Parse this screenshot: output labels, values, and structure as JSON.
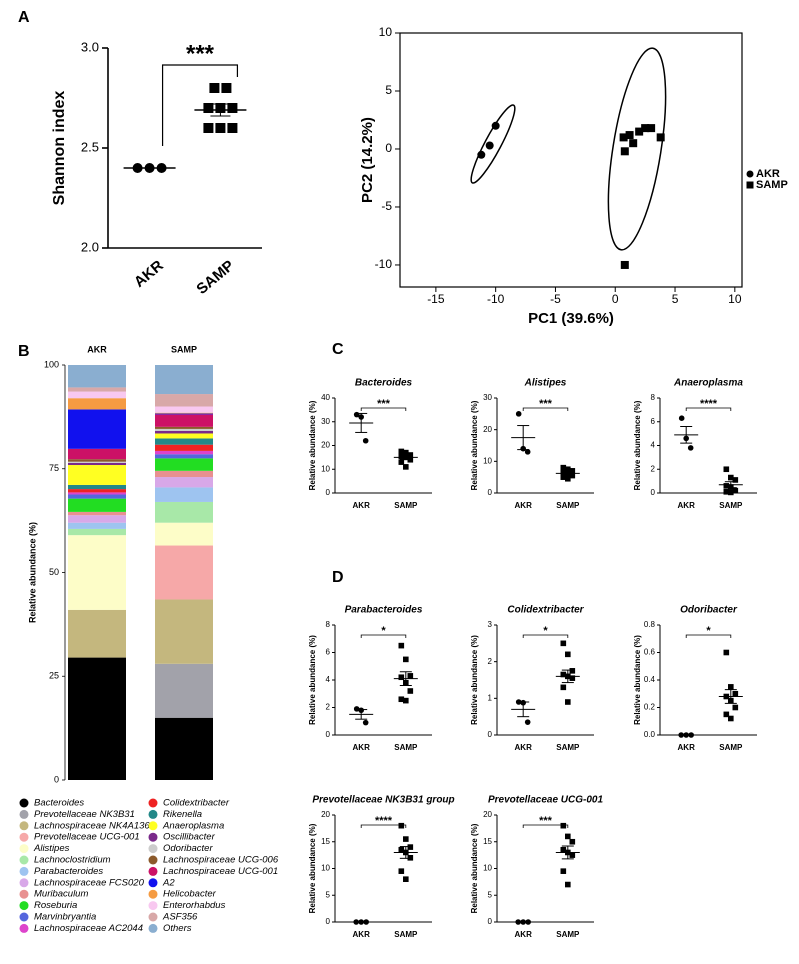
{
  "panel_labels": [
    "A",
    "B",
    "C",
    "D"
  ],
  "chart_data": [
    {
      "type": "dot",
      "y_label": "Shannon index",
      "categories": [
        "AKR",
        "SAMP"
      ],
      "markers": [
        "circle",
        "square"
      ],
      "points": [
        [
          2.4,
          2.4,
          2.4
        ],
        [
          2.8,
          2.8,
          2.7,
          2.7,
          2.7,
          2.6,
          2.6,
          2.6
        ]
      ],
      "means": [
        2.4,
        2.69
      ],
      "sems": [
        0,
        0.03
      ],
      "ylim": [
        2,
        3
      ],
      "yticks": [
        {
          "value": 2,
          "label": "2.0"
        },
        2.5,
        {
          "value": 3,
          "label": "3.0"
        }
      ],
      "significance": "***"
    },
    {
      "type": "scatter",
      "x_label": "PC1 (39.6%)",
      "y_label": "PC2 (14.2%)",
      "xlim": [
        -18,
        10.6
      ],
      "ylim": [
        -11.9,
        10
      ],
      "xticks": [
        -15,
        -10,
        -5,
        0,
        5,
        10
      ],
      "yticks": [
        -10,
        -5,
        0,
        5,
        10
      ],
      "legend": "right",
      "series": [
        {
          "name": "AKR",
          "marker": "circle",
          "x": [
            -11.2,
            -10.5,
            -10
          ],
          "y": [
            -0.5,
            0.3,
            2
          ]
        },
        {
          "name": "SAMP",
          "marker": "square",
          "x": [
            0.7,
            1.2,
            1.5,
            2,
            2.5,
            3,
            3.8,
            0.8,
            0.8
          ],
          "y": [
            1,
            1.2,
            0.5,
            1.5,
            1.8,
            1.8,
            1,
            -0.2,
            -10
          ]
        }
      ]
    },
    {
      "type": "stacked_bar",
      "y_label": "Relative abundance (%)",
      "categories": [
        "AKR",
        "SAMP"
      ],
      "ylim": [
        0,
        100
      ],
      "yticks": [
        0,
        25,
        50,
        75,
        100
      ],
      "series": [
        {
          "name": "Bacteroides",
          "color": "#000000",
          "values": [
            29.5,
            15
          ]
        },
        {
          "name": "Prevotellaceae NK3B31",
          "color": "#a2a2aa",
          "values": [
            0,
            13
          ]
        },
        {
          "name": "Lachnospiraceae NK4A136",
          "color": "#c4b77e",
          "values": [
            11.5,
            15.5
          ]
        },
        {
          "name": "Prevotellaceae UCG-001",
          "color": "#f6a8a8",
          "values": [
            0,
            13
          ]
        },
        {
          "name": "Alistipes",
          "color": "#fdfdc8",
          "values": [
            18,
            5.5
          ]
        },
        {
          "name": "Lachnoclostridium",
          "color": "#a8e8a8",
          "values": [
            1.5,
            5
          ]
        },
        {
          "name": "Parabacteroides",
          "color": "#9ec4f0",
          "values": [
            1.5,
            3.5
          ]
        },
        {
          "name": "Lachnospiraceae FCS020",
          "color": "#d8a8e8",
          "values": [
            1.8,
            2.5
          ]
        },
        {
          "name": "Muribaculum",
          "color": "#e89090",
          "values": [
            0.8,
            1.5
          ]
        },
        {
          "name": "Roseburia",
          "color": "#22dd22",
          "values": [
            3.2,
            3
          ]
        },
        {
          "name": "Marvinbryantia",
          "color": "#5566dd",
          "values": [
            1,
            1
          ]
        },
        {
          "name": "Lachnospiraceae AC2044",
          "color": "#dd44cc",
          "values": [
            0.5,
            0.8
          ]
        },
        {
          "name": "Colidextribacter",
          "color": "#ee2222",
          "values": [
            0.8,
            1.5
          ]
        },
        {
          "name": "Rikenella",
          "color": "#228888",
          "values": [
            1,
            1.5
          ]
        },
        {
          "name": "Anaeroplasma",
          "color": "#ffff22",
          "values": [
            4.8,
            1.2
          ]
        },
        {
          "name": "Oscillibacter",
          "color": "#7a2a8a",
          "values": [
            0.5,
            0.6
          ]
        },
        {
          "name": "Odoribacter",
          "color": "#cccccc",
          "values": [
            0.3,
            0.5
          ]
        },
        {
          "name": "Lachnospiraceae UCG-006",
          "color": "#8b5a2b",
          "values": [
            0.6,
            0.5
          ]
        },
        {
          "name": "Lachnospiraceae UCG-001",
          "color": "#cc1166",
          "values": [
            2.5,
            3
          ]
        },
        {
          "name": "A2",
          "color": "#1111ee",
          "values": [
            9.5,
            0.2
          ]
        },
        {
          "name": "Helicobacter",
          "color": "#f59b42",
          "values": [
            2.7,
            0.2
          ]
        },
        {
          "name": "Enterorhabdus",
          "color": "#f8c8f0",
          "values": [
            1.6,
            1.5
          ]
        },
        {
          "name": "ASF356",
          "color": "#d8a8a8",
          "values": [
            1,
            3
          ]
        },
        {
          "name": "Others",
          "color": "#8aaed0",
          "values": [
            5.4,
            7
          ]
        }
      ]
    },
    {
      "type": "dot",
      "title": "Bacteroides",
      "y_label": "Relative abundance (%)",
      "categories": [
        "AKR",
        "SAMP"
      ],
      "markers": [
        "circle",
        "square"
      ],
      "points": [
        [
          33,
          32,
          22
        ],
        [
          17.5,
          17,
          16,
          15.5,
          15,
          14,
          13,
          11
        ]
      ],
      "means": [
        29.5,
        15
      ],
      "sems": [
        4,
        0.8
      ],
      "ylim": [
        0,
        40
      ],
      "yticks": [
        0,
        10,
        20,
        30,
        40
      ],
      "significance": "***"
    },
    {
      "type": "dot",
      "title": "Alistipes",
      "y_label": "Relative abundance (%)",
      "categories": [
        "AKR",
        "SAMP"
      ],
      "markers": [
        "circle",
        "square"
      ],
      "points": [
        [
          25,
          14,
          13
        ],
        [
          8,
          7.5,
          7,
          6.5,
          6,
          5.5,
          5,
          4.5
        ]
      ],
      "means": [
        17.5,
        6.2
      ],
      "sems": [
        3.8,
        0.5
      ],
      "ylim": [
        0,
        30
      ],
      "yticks": [
        0,
        10,
        20,
        30
      ],
      "significance": "***"
    },
    {
      "type": "dot",
      "title": "Anaeroplasma",
      "y_label": "Relative abundance (%)",
      "categories": [
        "AKR",
        "SAMP"
      ],
      "markers": [
        "circle",
        "square"
      ],
      "points": [
        [
          6.3,
          4.6,
          3.8
        ],
        [
          2,
          1.3,
          1.1,
          0.6,
          0.5,
          0.2,
          0.1,
          0.05
        ]
      ],
      "means": [
        4.9,
        0.7
      ],
      "sems": [
        0.7,
        0.25
      ],
      "ylim": [
        0,
        8
      ],
      "yticks": [
        0,
        2,
        4,
        6,
        8
      ],
      "significance": "****"
    },
    {
      "type": "dot",
      "title": "Parabacteroides",
      "y_label": "Relative abundance (%)",
      "categories": [
        "AKR",
        "SAMP"
      ],
      "markers": [
        "circle",
        "square"
      ],
      "points": [
        [
          1.9,
          1.8,
          0.9
        ],
        [
          6.5,
          5.5,
          4.3,
          4.2,
          3.8,
          3.2,
          2.6,
          2.5
        ]
      ],
      "means": [
        1.5,
        4.1
      ],
      "sems": [
        0.35,
        0.5
      ],
      "ylim": [
        0,
        8
      ],
      "yticks": [
        0,
        2,
        4,
        6,
        8
      ],
      "significance": "*"
    },
    {
      "type": "dot",
      "title": "Colidextribacter",
      "y_label": "Relative abundance (%)",
      "categories": [
        "AKR",
        "SAMP"
      ],
      "markers": [
        "circle",
        "square"
      ],
      "points": [
        [
          0.9,
          0.88,
          0.35
        ],
        [
          2.5,
          2.2,
          1.75,
          1.65,
          1.6,
          1.55,
          1.3,
          0.9
        ]
      ],
      "means": [
        0.7,
        1.6
      ],
      "sems": [
        0.2,
        0.17
      ],
      "ylim": [
        0,
        3
      ],
      "yticks": [
        0,
        1,
        2,
        3
      ],
      "significance": "*"
    },
    {
      "type": "dot",
      "title": "Odoribacter",
      "y_label": "Relative abundance (%)",
      "categories": [
        "AKR",
        "SAMP"
      ],
      "markers": [
        "circle",
        "square"
      ],
      "points": [
        [
          0,
          0,
          0
        ],
        [
          0.6,
          0.35,
          0.3,
          0.28,
          0.25,
          0.2,
          0.15,
          0.12
        ]
      ],
      "means": [
        0,
        0.28
      ],
      "sems": [
        0,
        0.05
      ],
      "ylim": [
        0,
        0.8
      ],
      "yticks": [
        {
          "value": 0,
          "label": "0.0"
        },
        0.2,
        0.4,
        0.6,
        0.8
      ],
      "significance": "*"
    },
    {
      "type": "dot",
      "title": "Prevotellaceae NK3B31 group",
      "y_label": "Relative abundance (%)",
      "categories": [
        "AKR",
        "SAMP"
      ],
      "markers": [
        "circle",
        "square"
      ],
      "points": [
        [
          0,
          0,
          0
        ],
        [
          18,
          15.5,
          14,
          13.5,
          13,
          12,
          9.5,
          8
        ]
      ],
      "means": [
        0,
        13
      ],
      "sems": [
        0,
        1.1
      ],
      "ylim": [
        0,
        20
      ],
      "yticks": [
        0,
        5,
        10,
        15,
        20
      ],
      "significance": "****"
    },
    {
      "type": "dot",
      "title": "Prevotellaceae UCG-001",
      "y_label": "Relative abundance (%)",
      "categories": [
        "AKR",
        "SAMP"
      ],
      "markers": [
        "circle",
        "square"
      ],
      "points": [
        [
          0,
          0,
          0
        ],
        [
          18,
          16,
          15,
          13.5,
          13,
          12.5,
          9.5,
          7
        ]
      ],
      "means": [
        0,
        13
      ],
      "sems": [
        0,
        1.2
      ],
      "ylim": [
        0,
        20
      ],
      "yticks": [
        0,
        5,
        10,
        15,
        20
      ],
      "significance": "***"
    }
  ]
}
